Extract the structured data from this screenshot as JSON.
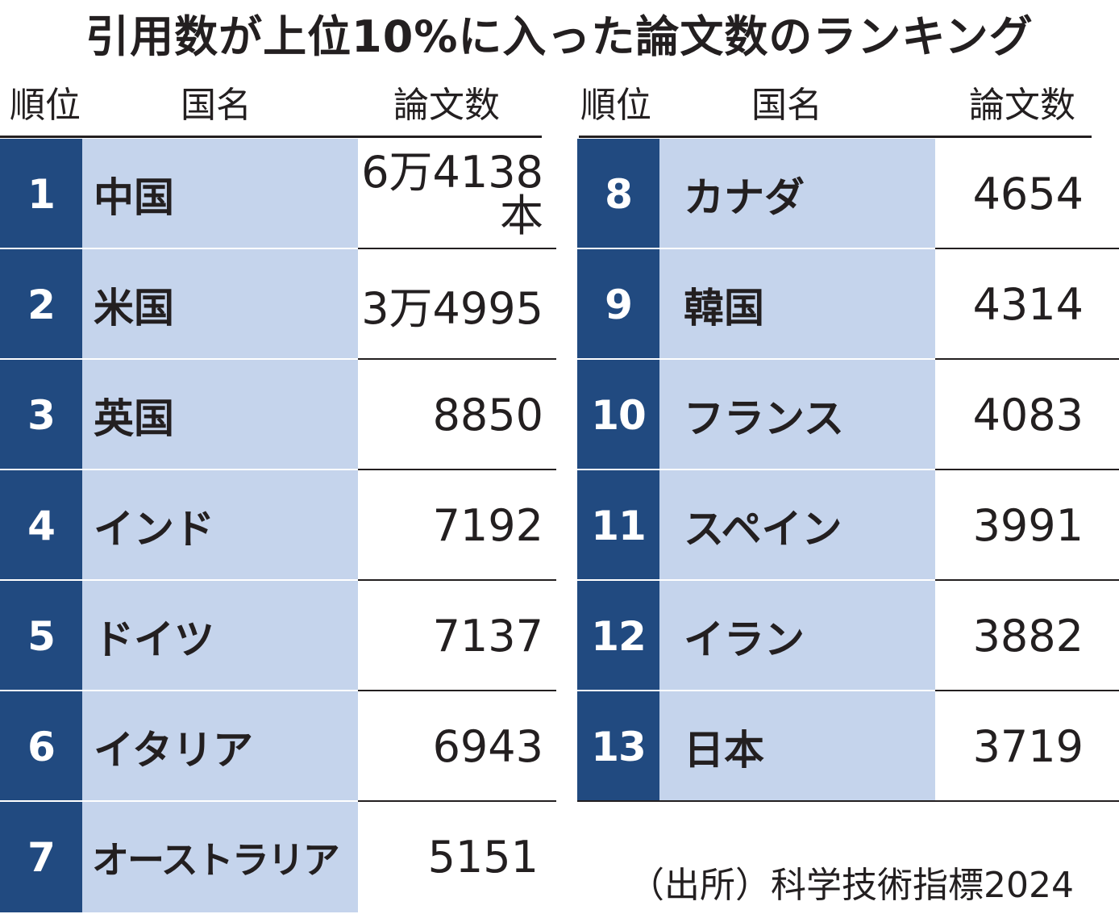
{
  "title": "引用数が上位10%に入った論文数のランキング",
  "headers": {
    "rank": "順位",
    "country": "国名",
    "count": "論文数"
  },
  "colors": {
    "rank_bg": "#214a80",
    "name_bg": "#c5d4ec",
    "text": "#231f20"
  },
  "rows_left": [
    {
      "rank": "1",
      "country": "中国",
      "count_line1": "6万4138",
      "count_line2": "本"
    },
    {
      "rank": "2",
      "country": "米国",
      "count_line1": "3万4995"
    },
    {
      "rank": "3",
      "country": "英国",
      "count_line1": "8850"
    },
    {
      "rank": "4",
      "country": "インド",
      "count_line1": "7192"
    },
    {
      "rank": "5",
      "country": "ドイツ",
      "count_line1": "7137"
    },
    {
      "rank": "6",
      "country": "イタリア",
      "count_line1": "6943"
    },
    {
      "rank": "7",
      "country": "オーストラリア",
      "count_line1": "5151"
    }
  ],
  "rows_right": [
    {
      "rank": "8",
      "country": "カナダ",
      "count_line1": "4654"
    },
    {
      "rank": "9",
      "country": "韓国",
      "count_line1": "4314"
    },
    {
      "rank": "10",
      "country": "フランス",
      "count_line1": "4083"
    },
    {
      "rank": "11",
      "country": "スペイン",
      "count_line1": "3991"
    },
    {
      "rank": "12",
      "country": "イラン",
      "count_line1": "3882"
    },
    {
      "rank": "13",
      "country": "日本",
      "count_line1": "3719"
    }
  ],
  "source": "（出所）科学技術指標2024",
  "chart_data": {
    "type": "table",
    "title": "引用数が上位10%に入った論文数のランキング",
    "columns": [
      "順位",
      "国名",
      "論文数"
    ],
    "rows": [
      [
        1,
        "中国",
        64138
      ],
      [
        2,
        "米国",
        34995
      ],
      [
        3,
        "英国",
        8850
      ],
      [
        4,
        "インド",
        7192
      ],
      [
        5,
        "ドイツ",
        7137
      ],
      [
        6,
        "イタリア",
        6943
      ],
      [
        7,
        "オーストラリア",
        5151
      ],
      [
        8,
        "カナダ",
        4654
      ],
      [
        9,
        "韓国",
        4314
      ],
      [
        10,
        "フランス",
        4083
      ],
      [
        11,
        "スペイン",
        3991
      ],
      [
        12,
        "イラン",
        3882
      ],
      [
        13,
        "日本",
        3719
      ]
    ],
    "source": "（出所）科学技術指標2024"
  }
}
